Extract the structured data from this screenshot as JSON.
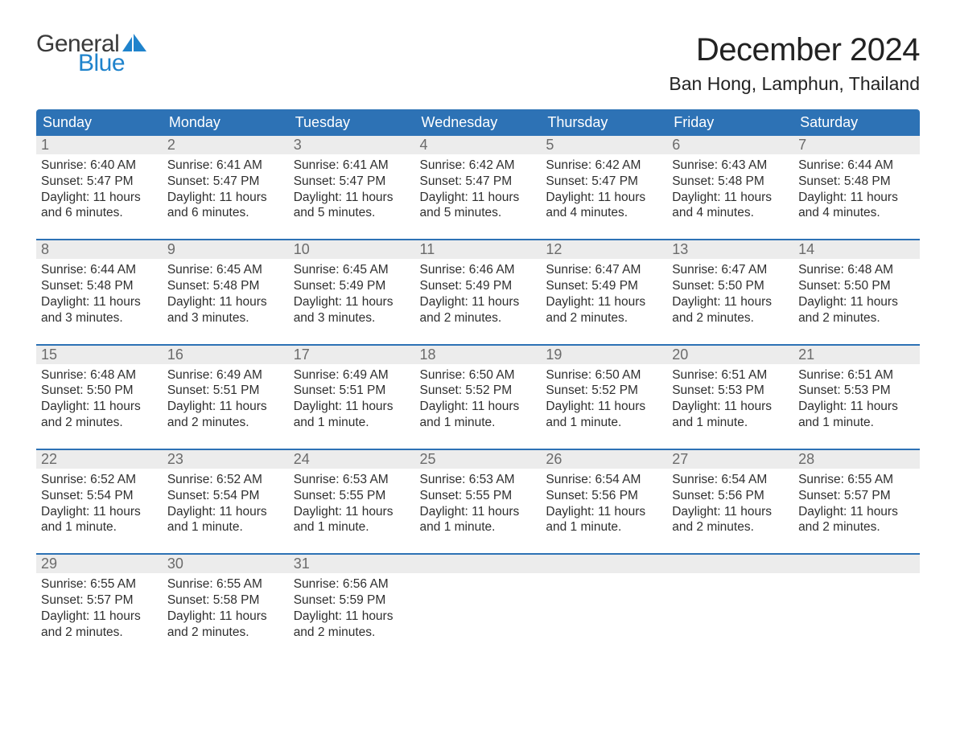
{
  "brand": {
    "word1": "General",
    "word2": "Blue"
  },
  "title": "December 2024",
  "location": "Ban Hong, Lamphun, Thailand",
  "colors": {
    "header_blue": "#2d72b5",
    "accent_blue": "#1f83cc",
    "row_gray": "#ececec",
    "daynum_gray": "#6b6b6b",
    "text": "#2f2f2f",
    "background": "#ffffff"
  },
  "weekdays": [
    "Sunday",
    "Monday",
    "Tuesday",
    "Wednesday",
    "Thursday",
    "Friday",
    "Saturday"
  ],
  "weeks": [
    [
      {
        "n": "1",
        "sunrise": "Sunrise: 6:40 AM",
        "sunset": "Sunset: 5:47 PM",
        "day1": "Daylight: 11 hours",
        "day2": "and 6 minutes."
      },
      {
        "n": "2",
        "sunrise": "Sunrise: 6:41 AM",
        "sunset": "Sunset: 5:47 PM",
        "day1": "Daylight: 11 hours",
        "day2": "and 6 minutes."
      },
      {
        "n": "3",
        "sunrise": "Sunrise: 6:41 AM",
        "sunset": "Sunset: 5:47 PM",
        "day1": "Daylight: 11 hours",
        "day2": "and 5 minutes."
      },
      {
        "n": "4",
        "sunrise": "Sunrise: 6:42 AM",
        "sunset": "Sunset: 5:47 PM",
        "day1": "Daylight: 11 hours",
        "day2": "and 5 minutes."
      },
      {
        "n": "5",
        "sunrise": "Sunrise: 6:42 AM",
        "sunset": "Sunset: 5:47 PM",
        "day1": "Daylight: 11 hours",
        "day2": "and 4 minutes."
      },
      {
        "n": "6",
        "sunrise": "Sunrise: 6:43 AM",
        "sunset": "Sunset: 5:48 PM",
        "day1": "Daylight: 11 hours",
        "day2": "and 4 minutes."
      },
      {
        "n": "7",
        "sunrise": "Sunrise: 6:44 AM",
        "sunset": "Sunset: 5:48 PM",
        "day1": "Daylight: 11 hours",
        "day2": "and 4 minutes."
      }
    ],
    [
      {
        "n": "8",
        "sunrise": "Sunrise: 6:44 AM",
        "sunset": "Sunset: 5:48 PM",
        "day1": "Daylight: 11 hours",
        "day2": "and 3 minutes."
      },
      {
        "n": "9",
        "sunrise": "Sunrise: 6:45 AM",
        "sunset": "Sunset: 5:48 PM",
        "day1": "Daylight: 11 hours",
        "day2": "and 3 minutes."
      },
      {
        "n": "10",
        "sunrise": "Sunrise: 6:45 AM",
        "sunset": "Sunset: 5:49 PM",
        "day1": "Daylight: 11 hours",
        "day2": "and 3 minutes."
      },
      {
        "n": "11",
        "sunrise": "Sunrise: 6:46 AM",
        "sunset": "Sunset: 5:49 PM",
        "day1": "Daylight: 11 hours",
        "day2": "and 2 minutes."
      },
      {
        "n": "12",
        "sunrise": "Sunrise: 6:47 AM",
        "sunset": "Sunset: 5:49 PM",
        "day1": "Daylight: 11 hours",
        "day2": "and 2 minutes."
      },
      {
        "n": "13",
        "sunrise": "Sunrise: 6:47 AM",
        "sunset": "Sunset: 5:50 PM",
        "day1": "Daylight: 11 hours",
        "day2": "and 2 minutes."
      },
      {
        "n": "14",
        "sunrise": "Sunrise: 6:48 AM",
        "sunset": "Sunset: 5:50 PM",
        "day1": "Daylight: 11 hours",
        "day2": "and 2 minutes."
      }
    ],
    [
      {
        "n": "15",
        "sunrise": "Sunrise: 6:48 AM",
        "sunset": "Sunset: 5:50 PM",
        "day1": "Daylight: 11 hours",
        "day2": "and 2 minutes."
      },
      {
        "n": "16",
        "sunrise": "Sunrise: 6:49 AM",
        "sunset": "Sunset: 5:51 PM",
        "day1": "Daylight: 11 hours",
        "day2": "and 2 minutes."
      },
      {
        "n": "17",
        "sunrise": "Sunrise: 6:49 AM",
        "sunset": "Sunset: 5:51 PM",
        "day1": "Daylight: 11 hours",
        "day2": "and 1 minute."
      },
      {
        "n": "18",
        "sunrise": "Sunrise: 6:50 AM",
        "sunset": "Sunset: 5:52 PM",
        "day1": "Daylight: 11 hours",
        "day2": "and 1 minute."
      },
      {
        "n": "19",
        "sunrise": "Sunrise: 6:50 AM",
        "sunset": "Sunset: 5:52 PM",
        "day1": "Daylight: 11 hours",
        "day2": "and 1 minute."
      },
      {
        "n": "20",
        "sunrise": "Sunrise: 6:51 AM",
        "sunset": "Sunset: 5:53 PM",
        "day1": "Daylight: 11 hours",
        "day2": "and 1 minute."
      },
      {
        "n": "21",
        "sunrise": "Sunrise: 6:51 AM",
        "sunset": "Sunset: 5:53 PM",
        "day1": "Daylight: 11 hours",
        "day2": "and 1 minute."
      }
    ],
    [
      {
        "n": "22",
        "sunrise": "Sunrise: 6:52 AM",
        "sunset": "Sunset: 5:54 PM",
        "day1": "Daylight: 11 hours",
        "day2": "and 1 minute."
      },
      {
        "n": "23",
        "sunrise": "Sunrise: 6:52 AM",
        "sunset": "Sunset: 5:54 PM",
        "day1": "Daylight: 11 hours",
        "day2": "and 1 minute."
      },
      {
        "n": "24",
        "sunrise": "Sunrise: 6:53 AM",
        "sunset": "Sunset: 5:55 PM",
        "day1": "Daylight: 11 hours",
        "day2": "and 1 minute."
      },
      {
        "n": "25",
        "sunrise": "Sunrise: 6:53 AM",
        "sunset": "Sunset: 5:55 PM",
        "day1": "Daylight: 11 hours",
        "day2": "and 1 minute."
      },
      {
        "n": "26",
        "sunrise": "Sunrise: 6:54 AM",
        "sunset": "Sunset: 5:56 PM",
        "day1": "Daylight: 11 hours",
        "day2": "and 1 minute."
      },
      {
        "n": "27",
        "sunrise": "Sunrise: 6:54 AM",
        "sunset": "Sunset: 5:56 PM",
        "day1": "Daylight: 11 hours",
        "day2": "and 2 minutes."
      },
      {
        "n": "28",
        "sunrise": "Sunrise: 6:55 AM",
        "sunset": "Sunset: 5:57 PM",
        "day1": "Daylight: 11 hours",
        "day2": "and 2 minutes."
      }
    ],
    [
      {
        "n": "29",
        "sunrise": "Sunrise: 6:55 AM",
        "sunset": "Sunset: 5:57 PM",
        "day1": "Daylight: 11 hours",
        "day2": "and 2 minutes."
      },
      {
        "n": "30",
        "sunrise": "Sunrise: 6:55 AM",
        "sunset": "Sunset: 5:58 PM",
        "day1": "Daylight: 11 hours",
        "day2": "and 2 minutes."
      },
      {
        "n": "31",
        "sunrise": "Sunrise: 6:56 AM",
        "sunset": "Sunset: 5:59 PM",
        "day1": "Daylight: 11 hours",
        "day2": "and 2 minutes."
      },
      null,
      null,
      null,
      null
    ]
  ]
}
